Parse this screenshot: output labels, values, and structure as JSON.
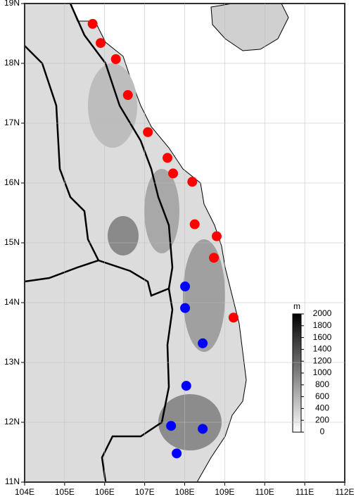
{
  "chart_data": {
    "type": "scatter",
    "xlim": [
      104,
      112
    ],
    "ylim": [
      11,
      19
    ],
    "xticks": [
      {
        "value": 104,
        "label": "104E"
      },
      {
        "value": 105,
        "label": "105E"
      },
      {
        "value": 106,
        "label": "106E"
      },
      {
        "value": 107,
        "label": "107E"
      },
      {
        "value": 108,
        "label": "108E"
      },
      {
        "value": 109,
        "label": "109E"
      },
      {
        "value": 110,
        "label": "110E"
      },
      {
        "value": 111,
        "label": "111E"
      },
      {
        "value": 112,
        "label": "112E"
      }
    ],
    "yticks": [
      {
        "value": 11,
        "label": "11N"
      },
      {
        "value": 12,
        "label": "12N"
      },
      {
        "value": 13,
        "label": "13N"
      },
      {
        "value": 14,
        "label": "14N"
      },
      {
        "value": 15,
        "label": "15N"
      },
      {
        "value": 16,
        "label": "16N"
      },
      {
        "value": 17,
        "label": "17N"
      },
      {
        "value": 18,
        "label": "18N"
      },
      {
        "value": 19,
        "label": "19N"
      }
    ],
    "grid": true,
    "series": [
      {
        "color": "#ff0000",
        "x": [
          105.7,
          105.9,
          106.28,
          106.58,
          107.08,
          107.57,
          107.71,
          108.19,
          108.25,
          108.8,
          108.73,
          109.22
        ],
        "values": [
          18.66,
          18.34,
          18.07,
          17.47,
          16.85,
          16.42,
          16.16,
          16.02,
          15.31,
          15.11,
          14.75,
          13.75
        ]
      },
      {
        "color": "#0000ff",
        "x": [
          108.01,
          108.01,
          108.45,
          108.04,
          107.66,
          108.45,
          107.8
        ],
        "values": [
          14.27,
          13.91,
          13.32,
          12.61,
          11.94,
          11.89,
          11.48
        ]
      }
    ],
    "colorbar": {
      "label": "m",
      "lim": [
        0,
        2000
      ],
      "ticks": [
        0,
        200,
        400,
        600,
        800,
        1000,
        1200,
        1400,
        1600,
        1800,
        2000
      ]
    }
  }
}
